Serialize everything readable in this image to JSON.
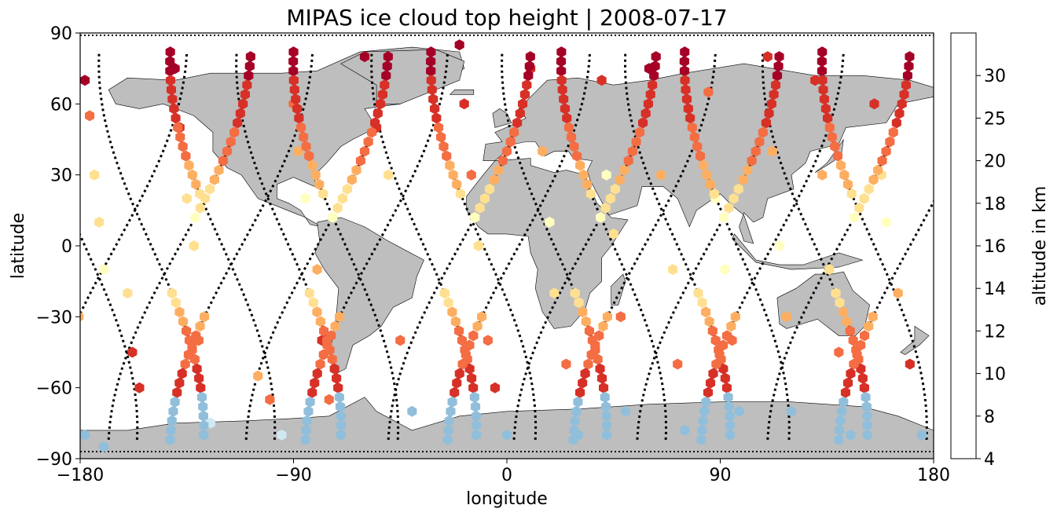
{
  "chart_data": {
    "type": "scatter",
    "title": "MIPAS ice cloud top height | 2008-07-17",
    "xlabel": "longitude",
    "ylabel": "latitude",
    "xlim": [
      -180,
      180
    ],
    "ylim": [
      -90,
      90
    ],
    "xticks": [
      "−180",
      "−90",
      "0",
      "90",
      "180"
    ],
    "yticks": [
      "90",
      "60",
      "30",
      "0",
      "−30",
      "−60",
      "−90"
    ],
    "xtick_values": [
      -180,
      -90,
      0,
      90,
      180
    ],
    "ytick_values": [
      90,
      60,
      30,
      0,
      -30,
      -60,
      -90
    ],
    "grid": false,
    "land_color": "#bebebe",
    "track_color": "#000000",
    "colorbar": {
      "label": "altitude in km",
      "bounds": [
        4,
        8,
        10,
        12,
        14,
        16,
        18,
        20,
        25,
        30
      ],
      "tick_labels": [
        "4",
        "8",
        "10",
        "12",
        "14",
        "16",
        "18",
        "20",
        "25",
        "30"
      ],
      "colors": [
        "#a50026",
        "#d73027",
        "#f46d43",
        "#fdae61",
        "#fee090",
        "#ffffbf",
        "#d0e8f1",
        "#91bfdb",
        "#4575b4",
        "#313695"
      ]
    },
    "orbits_descending_lon": [
      -178,
      -150,
      -120,
      -92,
      -68,
      -35,
      -10,
      20,
      45,
      72,
      97,
      130,
      155
    ],
    "orbits_ascending_lon": [
      -165,
      -138,
      -112,
      -80,
      -55,
      -20,
      5,
      33,
      58,
      85,
      112,
      140,
      170
    ],
    "approx_cloud_points_lon_lat_alt_km": [
      [
        -178,
        70,
        7
      ],
      [
        -176,
        55,
        11
      ],
      [
        -174,
        30,
        14
      ],
      [
        -172,
        10,
        15
      ],
      [
        -170,
        -10,
        17
      ],
      [
        -160,
        -20,
        15
      ],
      [
        -158,
        -45,
        9
      ],
      [
        -155,
        -60,
        8
      ],
      [
        -178,
        -80,
        22
      ],
      [
        -170,
        -85,
        20
      ],
      [
        -140,
        75,
        7
      ],
      [
        -138,
        50,
        9
      ],
      [
        -135,
        20,
        15
      ],
      [
        -132,
        0,
        14
      ],
      [
        -130,
        -40,
        11
      ],
      [
        -125,
        -75,
        19
      ],
      [
        -105,
        -55,
        12
      ],
      [
        -100,
        -65,
        10
      ],
      [
        -95,
        -80,
        18
      ],
      [
        -90,
        60,
        11
      ],
      [
        -88,
        40,
        13
      ],
      [
        -85,
        20,
        17
      ],
      [
        -80,
        -10,
        12
      ],
      [
        -78,
        -40,
        9
      ],
      [
        -75,
        -65,
        11
      ],
      [
        -70,
        -80,
        21
      ],
      [
        -60,
        80,
        7
      ],
      [
        -55,
        50,
        8
      ],
      [
        -50,
        30,
        14
      ],
      [
        -45,
        -40,
        10
      ],
      [
        -40,
        -70,
        21
      ],
      [
        -20,
        85,
        7
      ],
      [
        -18,
        60,
        9
      ],
      [
        -15,
        30,
        11
      ],
      [
        -12,
        0,
        15
      ],
      [
        -8,
        -40,
        11
      ],
      [
        -5,
        -60,
        9
      ],
      [
        0,
        -80,
        21
      ],
      [
        10,
        75,
        8
      ],
      [
        15,
        40,
        12
      ],
      [
        18,
        10,
        17
      ],
      [
        20,
        -20,
        14
      ],
      [
        25,
        -50,
        10
      ],
      [
        30,
        -80,
        21
      ],
      [
        40,
        70,
        9
      ],
      [
        42,
        30,
        17
      ],
      [
        45,
        5,
        14
      ],
      [
        48,
        -30,
        11
      ],
      [
        50,
        -70,
        23
      ],
      [
        60,
        75,
        7
      ],
      [
        65,
        30,
        13
      ],
      [
        70,
        -10,
        15
      ],
      [
        72,
        -50,
        11
      ],
      [
        75,
        -78,
        24
      ],
      [
        85,
        65,
        11
      ],
      [
        88,
        20,
        17
      ],
      [
        92,
        -10,
        16
      ],
      [
        95,
        -40,
        11
      ],
      [
        98,
        -70,
        20
      ],
      [
        110,
        80,
        8
      ],
      [
        112,
        40,
        12
      ],
      [
        115,
        0,
        17
      ],
      [
        118,
        -30,
        12
      ],
      [
        120,
        -70,
        20
      ],
      [
        130,
        70,
        9
      ],
      [
        133,
        30,
        13
      ],
      [
        136,
        -10,
        15
      ],
      [
        140,
        -45,
        11
      ],
      [
        145,
        -80,
        21
      ],
      [
        155,
        60,
        9
      ],
      [
        158,
        30,
        14
      ],
      [
        160,
        10,
        17
      ],
      [
        165,
        -20,
        13
      ],
      [
        170,
        -50,
        9
      ],
      [
        175,
        -80,
        20
      ]
    ]
  }
}
